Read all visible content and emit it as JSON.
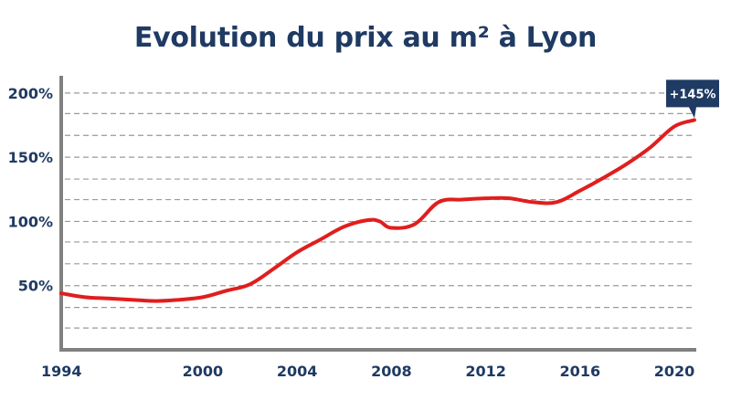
{
  "title": "Evolution du prix au m² à Lyon",
  "colors": {
    "title": "#1f3a63",
    "line": "#e01e1e",
    "axis": "#808080",
    "grid": "#9a9a9a",
    "badge": "#1f3a63"
  },
  "badge": {
    "label": "+145%",
    "at": {
      "x": 2020.85,
      "y": 179
    }
  },
  "chart_data": {
    "type": "line",
    "title": "Evolution du prix au m² à Lyon",
    "xlabel": "",
    "ylabel": "",
    "xlim": [
      1994,
      2020.85
    ],
    "ylim": [
      0,
      212
    ],
    "grid": true,
    "legend": "none",
    "yticks": [
      {
        "value": 50,
        "label": "50%"
      },
      {
        "value": 100,
        "label": "100%"
      },
      {
        "value": 150,
        "label": "150%"
      },
      {
        "value": 200,
        "label": "200%"
      }
    ],
    "xticks": [
      {
        "value": 1994,
        "label": "1994"
      },
      {
        "value": 2000,
        "label": "2000"
      },
      {
        "value": 2004,
        "label": "2004"
      },
      {
        "value": 2008,
        "label": "2008"
      },
      {
        "value": 2012,
        "label": "2012"
      },
      {
        "value": 2016,
        "label": "2016"
      },
      {
        "value": 2020,
        "label": "2020"
      }
    ],
    "gridlines": [
      17,
      33,
      50,
      67,
      84,
      100,
      117,
      133,
      150,
      167,
      184,
      200
    ],
    "series": [
      {
        "x": [
          1994,
          1995,
          1996,
          1997,
          1998,
          1999,
          2000,
          2001,
          2002,
          2003,
          2004,
          2005,
          2006,
          2007,
          2007.5,
          2008,
          2009,
          2010,
          2011,
          2012,
          2013,
          2014,
          2015,
          2016,
          2017,
          2018,
          2019,
          2020,
          2020.85
        ],
        "y": [
          44,
          41,
          40,
          39,
          38,
          39,
          41,
          46,
          51,
          63,
          76,
          86,
          96,
          101,
          100,
          95,
          98,
          115,
          117,
          118,
          118,
          115,
          115,
          124,
          134,
          145,
          158,
          174,
          179
        ]
      }
    ]
  }
}
